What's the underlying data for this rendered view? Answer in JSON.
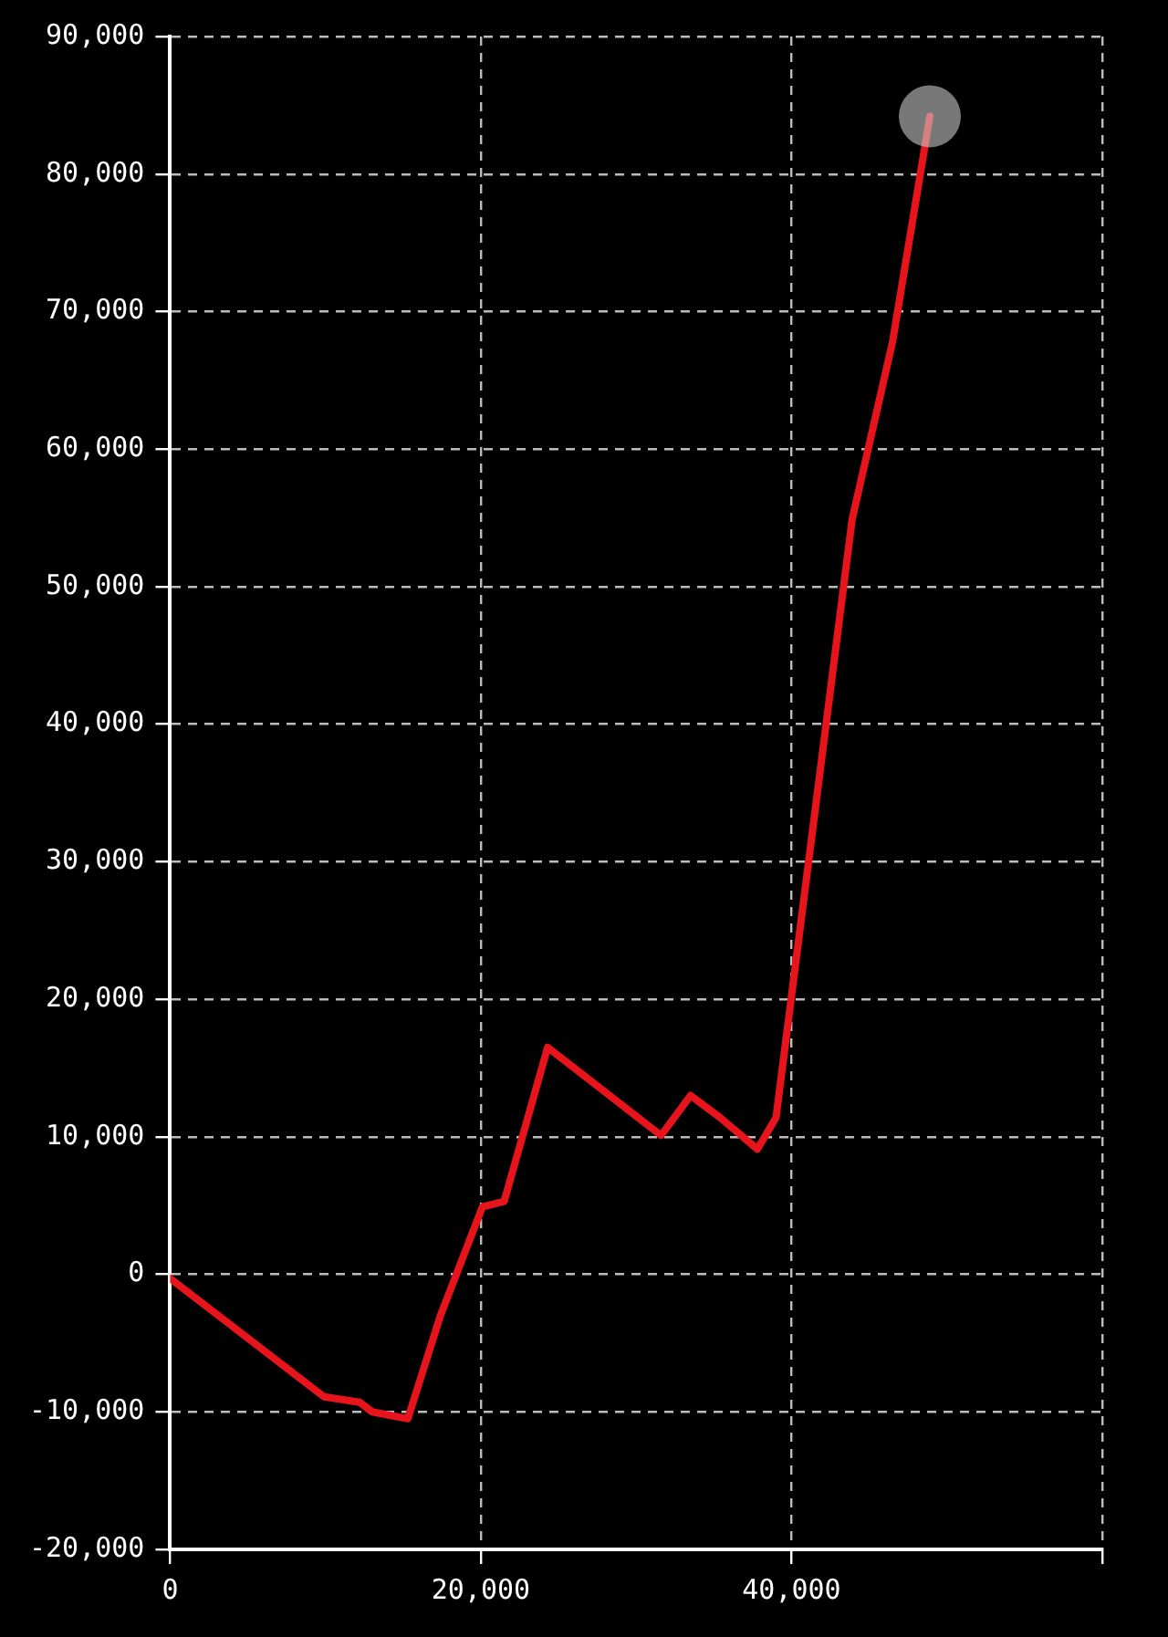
{
  "chart_data": {
    "type": "line",
    "grid": true,
    "legend": false,
    "xlim": [
      0,
      60000
    ],
    "xticks": [
      {
        "value": 0,
        "label": "0"
      },
      {
        "value": 20000,
        "label": "20,000"
      },
      {
        "value": 40000,
        "label": "40,000"
      },
      {
        "value": 60000,
        "label": null
      }
    ],
    "ylim": [
      -20000,
      90000
    ],
    "yticks": [
      {
        "value": -20000,
        "label": "-20,000"
      },
      {
        "value": -10000,
        "label": "-10,000"
      },
      {
        "value": 0,
        "label": "0"
      },
      {
        "value": 10000,
        "label": "10,000"
      },
      {
        "value": 20000,
        "label": "20,000"
      },
      {
        "value": 30000,
        "label": "30,000"
      },
      {
        "value": 40000,
        "label": "40,000"
      },
      {
        "value": 50000,
        "label": "50,000"
      },
      {
        "value": 60000,
        "label": "60,000"
      },
      {
        "value": 70000,
        "label": "70,000"
      },
      {
        "value": 80000,
        "label": "80,000"
      },
      {
        "value": 90000,
        "label": "90,000"
      }
    ],
    "series": [
      {
        "color": "#e8141b",
        "marker": "none",
        "line_style": "solid",
        "x": [
          0,
          9900,
          12200,
          13000,
          15300,
          17400,
          20100,
          21500,
          24300,
          31600,
          33500,
          35400,
          37800,
          39000,
          43900,
          46500,
          48900
        ],
        "values": [
          -300,
          -8900,
          -9300,
          -10000,
          -10500,
          -3000,
          4900,
          5300,
          16500,
          10100,
          13000,
          11400,
          9100,
          11400,
          54900,
          67800,
          84200
        ]
      },
      {
        "type": "scatter",
        "color": "#c8c8c8",
        "marker": "circle",
        "x": [
          48900
        ],
        "values": [
          84200
        ]
      }
    ]
  }
}
